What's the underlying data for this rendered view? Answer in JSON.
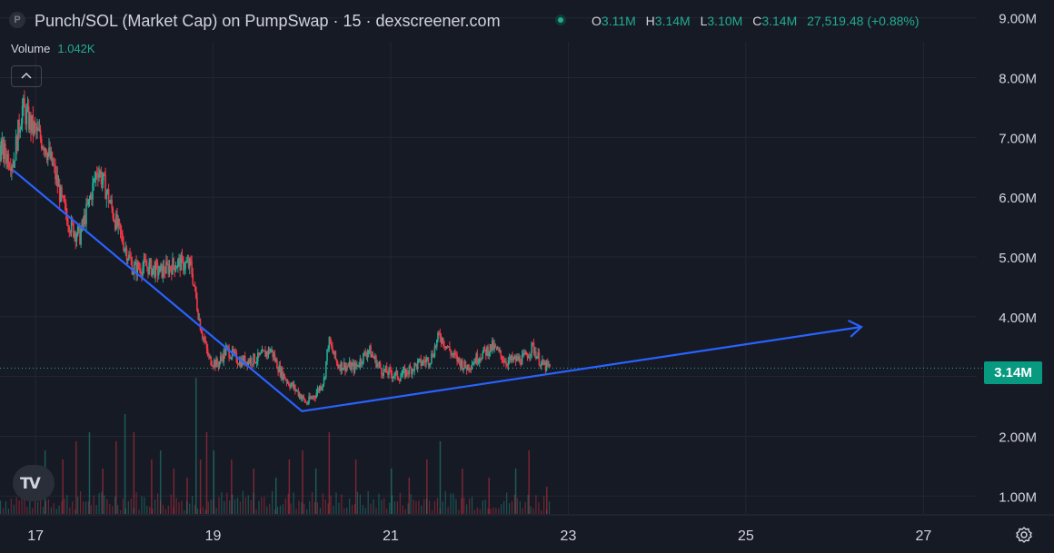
{
  "header": {
    "symbol_icon": "P",
    "title": "Punch/SOL (Market Cap) on PumpSwap · 15 · dexscreener.com",
    "ohlc": {
      "o_label": "O",
      "o": "3.11M",
      "h_label": "H",
      "h": "3.14M",
      "l_label": "L",
      "l": "3.10M",
      "c_label": "C",
      "c": "3.14M",
      "change": "27,519.48 (+0.88%)"
    },
    "volume_label": "Volume",
    "volume_value": "1.042K"
  },
  "last_price_label": "3.14M",
  "colors": {
    "background": "#161a25",
    "up": "#22ab94",
    "down": "#f23645",
    "trendline": "#2962ff",
    "grid": "#232733",
    "text": "#d1d4dc"
  },
  "icons": {
    "collapse": "chevron-up-icon",
    "settings": "gear-icon",
    "logo": "tradingview-logo-icon",
    "status": "market-status-dot-icon"
  },
  "logo_text": "TV",
  "chart_data": {
    "type": "candlestick",
    "y_axis": {
      "ticks": [
        1,
        2,
        3,
        4,
        5,
        6,
        7,
        8,
        9
      ],
      "tick_labels": [
        "1.00M",
        "2.00M",
        "3.00M",
        "4.00M",
        "5.00M",
        "6.00M",
        "7.00M",
        "8.00M",
        "9.00M"
      ],
      "range": [
        0.7,
        9.3
      ],
      "unit": "M"
    },
    "x_axis": {
      "ticks": [
        17,
        19,
        21,
        23,
        25,
        27
      ],
      "tick_labels": [
        "17",
        "19",
        "21",
        "23",
        "25",
        "27"
      ],
      "range": [
        16.6,
        27.6
      ]
    },
    "last_price": 3.14,
    "price_path": [
      [
        16.6,
        6.8
      ],
      [
        16.75,
        6.6
      ],
      [
        16.85,
        7.5
      ],
      [
        16.95,
        7.2
      ],
      [
        17.1,
        6.9
      ],
      [
        17.2,
        6.5
      ],
      [
        17.3,
        5.9
      ],
      [
        17.4,
        5.5
      ],
      [
        17.5,
        5.35
      ],
      [
        17.6,
        5.9
      ],
      [
        17.7,
        6.5
      ],
      [
        17.8,
        6.1
      ],
      [
        17.9,
        5.6
      ],
      [
        18.0,
        5.2
      ],
      [
        18.1,
        4.8
      ],
      [
        18.25,
        4.85
      ],
      [
        18.4,
        4.75
      ],
      [
        18.6,
        4.9
      ],
      [
        18.75,
        4.85
      ],
      [
        18.85,
        3.9
      ],
      [
        18.95,
        3.3
      ],
      [
        19.05,
        3.2
      ],
      [
        19.15,
        3.45
      ],
      [
        19.3,
        3.25
      ],
      [
        19.5,
        3.3
      ],
      [
        19.65,
        3.45
      ],
      [
        19.75,
        3.1
      ],
      [
        19.85,
        2.9
      ],
      [
        19.95,
        2.75
      ],
      [
        20.05,
        2.55
      ],
      [
        20.15,
        2.7
      ],
      [
        20.25,
        2.95
      ],
      [
        20.3,
        3.6
      ],
      [
        20.4,
        3.2
      ],
      [
        20.6,
        3.15
      ],
      [
        20.75,
        3.45
      ],
      [
        20.9,
        3.1
      ],
      [
        21.1,
        3.0
      ],
      [
        21.3,
        3.2
      ],
      [
        21.45,
        3.3
      ],
      [
        21.55,
        3.7
      ],
      [
        21.7,
        3.35
      ],
      [
        21.85,
        3.15
      ],
      [
        22.0,
        3.35
      ],
      [
        22.15,
        3.5
      ],
      [
        22.3,
        3.25
      ],
      [
        22.5,
        3.3
      ],
      [
        22.6,
        3.5
      ],
      [
        22.7,
        3.2
      ],
      [
        22.8,
        3.14
      ]
    ],
    "volume_bars": [
      [
        17.1,
        0.35
      ],
      [
        17.3,
        0.3
      ],
      [
        17.45,
        0.4
      ],
      [
        17.6,
        0.45
      ],
      [
        17.75,
        0.25
      ],
      [
        17.9,
        0.4
      ],
      [
        18.0,
        0.55
      ],
      [
        18.1,
        0.45
      ],
      [
        18.3,
        0.3
      ],
      [
        18.4,
        0.35
      ],
      [
        18.55,
        0.25
      ],
      [
        18.7,
        0.2
      ],
      [
        18.8,
        0.75
      ],
      [
        18.85,
        0.3
      ],
      [
        18.92,
        0.45
      ],
      [
        19.0,
        0.35
      ],
      [
        19.2,
        0.3
      ],
      [
        19.45,
        0.25
      ],
      [
        19.7,
        0.2
      ],
      [
        19.85,
        0.3
      ],
      [
        20.0,
        0.35
      ],
      [
        20.15,
        0.25
      ],
      [
        20.3,
        0.45
      ],
      [
        20.6,
        0.3
      ],
      [
        21.0,
        0.25
      ],
      [
        21.2,
        0.2
      ],
      [
        21.4,
        0.3
      ],
      [
        21.55,
        0.4
      ],
      [
        21.8,
        0.25
      ],
      [
        22.1,
        0.2
      ],
      [
        22.4,
        0.25
      ],
      [
        22.55,
        0.35
      ],
      [
        22.75,
        0.15
      ]
    ],
    "trendline": [
      [
        16.75,
        6.45
      ],
      [
        20.0,
        2.42
      ],
      [
        26.3,
        3.83
      ]
    ],
    "grid": true
  }
}
